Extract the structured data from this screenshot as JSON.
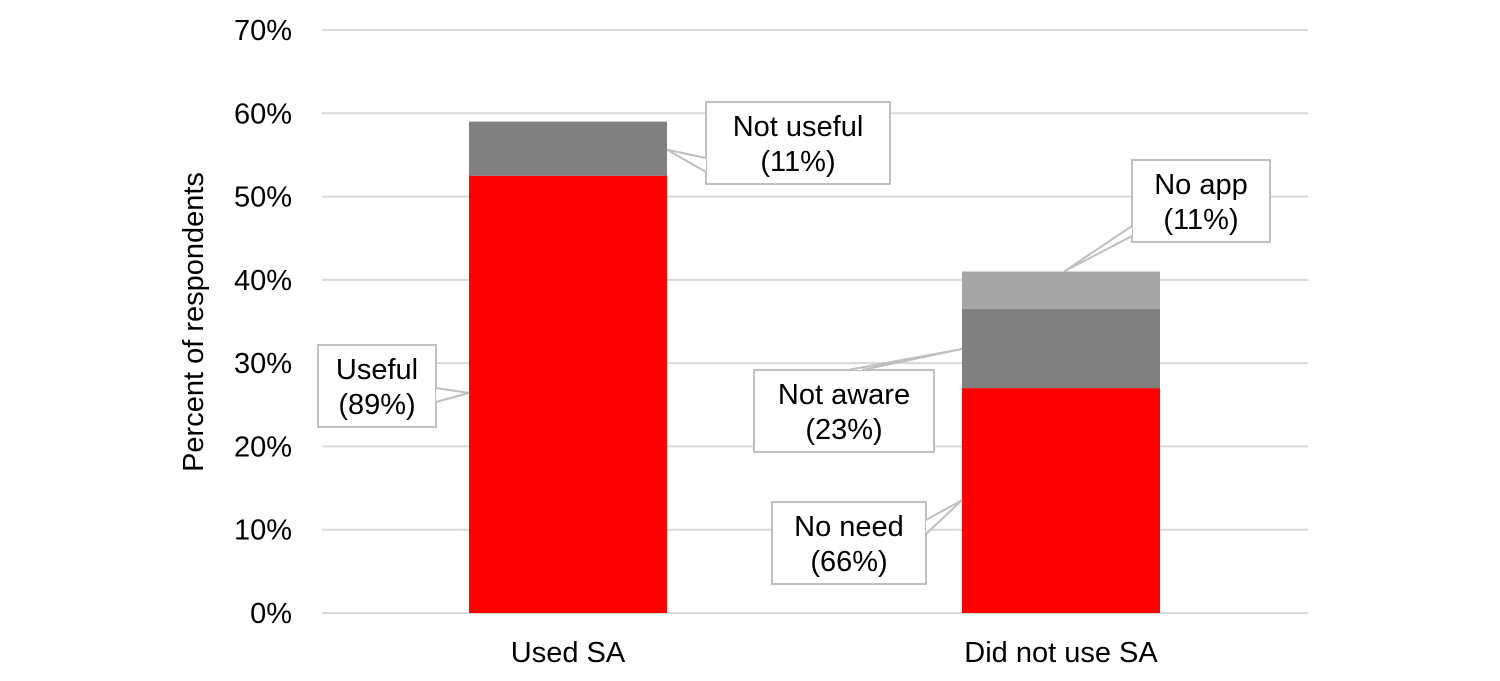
{
  "chart_data": {
    "type": "bar",
    "stacked": true,
    "title": "",
    "xlabel": "",
    "ylabel": "Percent of respondents",
    "ylim": [
      0,
      70
    ],
    "ytick_step": 10,
    "ytick_suffix": "%",
    "grid": true,
    "legend": "none",
    "categories": [
      "Used SA",
      "Did not use SA"
    ],
    "bars": [
      {
        "category": "Used SA",
        "segments": [
          {
            "label": "Useful (89%)",
            "label_lines": [
              "Useful",
              "(89%)"
            ],
            "value": 52.5,
            "color": "#ff0000"
          },
          {
            "label": "Not useful (11%)",
            "label_lines": [
              "Not useful",
              "(11%)"
            ],
            "value": 6.5,
            "color": "#808080"
          }
        ]
      },
      {
        "category": "Did not use SA",
        "segments": [
          {
            "label": "No need (66%)",
            "label_lines": [
              "No need",
              "(66%)"
            ],
            "value": 27,
            "color": "#ff0000"
          },
          {
            "label": "Not aware (23%)",
            "label_lines": [
              "Not aware",
              "(23%)"
            ],
            "value": 9.5,
            "color": "#808080"
          },
          {
            "label": "No app (11%)",
            "label_lines": [
              "No app",
              "(11%)"
            ],
            "value": 4.5,
            "color": "#a6a6a6"
          }
        ]
      }
    ]
  }
}
